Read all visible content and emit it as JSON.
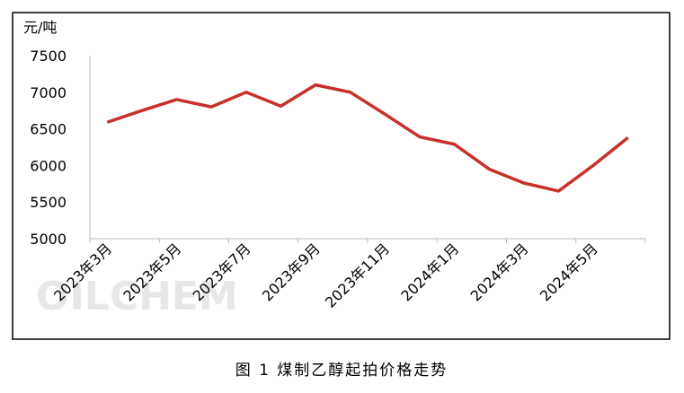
{
  "chart_data": {
    "type": "line",
    "y_label": "元/吨",
    "watermark": "OILCHEM",
    "caption": "图 1 煤制乙醇起拍价格走势",
    "categories": [
      "2023年3月",
      null,
      "2023年5月",
      null,
      "2023年7月",
      null,
      "2023年9月",
      null,
      "2023年11月",
      null,
      "2024年1月",
      null,
      "2024年3月",
      null,
      "2024年5月",
      null
    ],
    "series": [
      {
        "color": "#c8302c",
        "values": [
          6590,
          6750,
          6900,
          6800,
          7000,
          6810,
          7100,
          7000,
          6700,
          6390,
          6290,
          5950,
          5760,
          5650,
          6000,
          6380
        ]
      }
    ],
    "ylim": [
      5000,
      7500
    ],
    "yticks": [
      5000,
      5500,
      6000,
      6500,
      7000,
      7500
    ],
    "grid": false
  }
}
